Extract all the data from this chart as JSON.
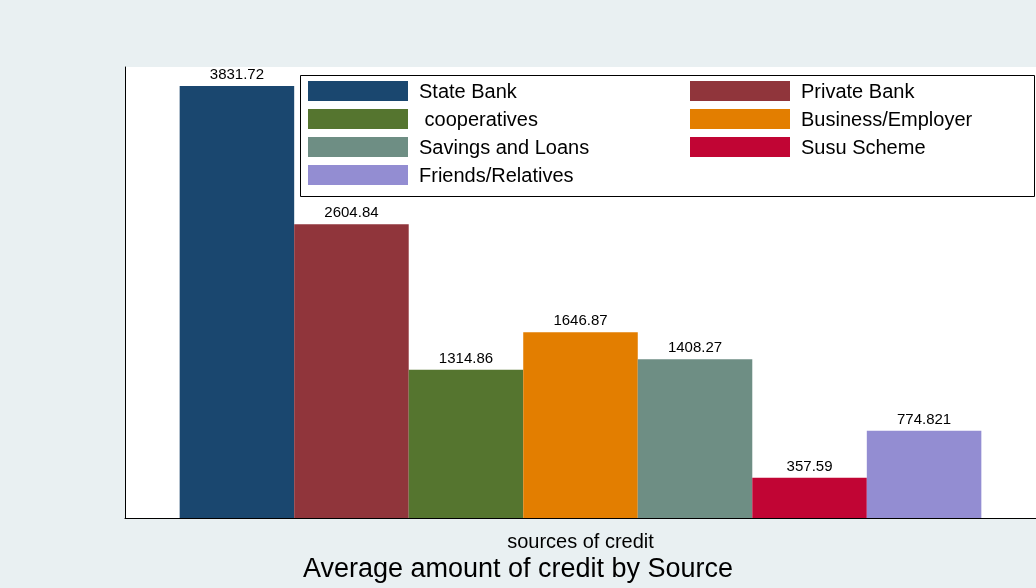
{
  "chart_data": {
    "type": "bar",
    "title": "Average amount of credit by Source",
    "xlabel": "sources of credit",
    "categories": [
      null
    ],
    "series": [
      {
        "name": "State Bank",
        "color": "#1a476f",
        "values": [
          3831.72
        ]
      },
      {
        "name": "Private Bank",
        "color": "#90353b",
        "values": [
          2604.84
        ]
      },
      {
        "name": " cooperatives",
        "color": "#55752f",
        "values": [
          1314.86
        ]
      },
      {
        "name": "Business/Employer",
        "color": "#e37e00",
        "values": [
          1646.87
        ]
      },
      {
        "name": "Savings and Loans",
        "color": "#6e8e84",
        "values": [
          1408.27
        ]
      },
      {
        "name": "Susu Scheme",
        "color": "#c10534",
        "values": [
          357.59
        ]
      },
      {
        "name": "Friends/Relatives",
        "color": "#938dd2",
        "values": [
          774.821
        ]
      }
    ],
    "ylim": [
      0,
      4000
    ],
    "data_labels": true,
    "legend": "top right",
    "grid": false
  }
}
